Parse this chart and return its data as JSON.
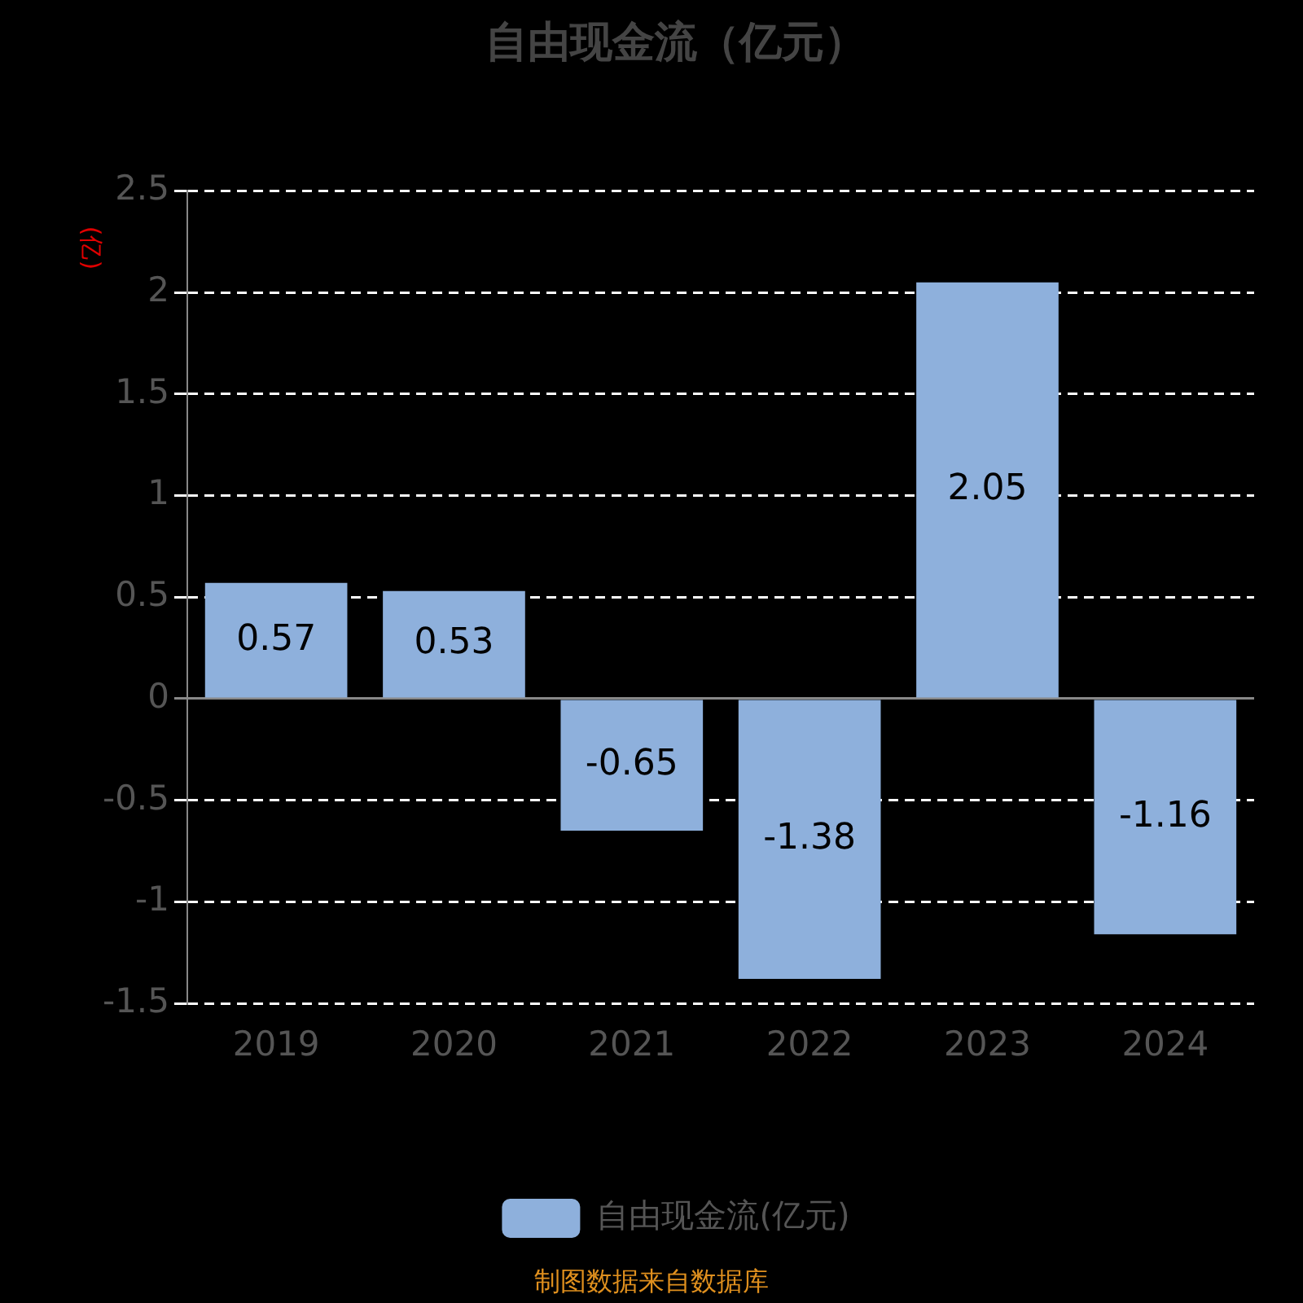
{
  "chart_data": {
    "type": "bar",
    "title": "自由现金流（亿元）",
    "ylabel": "(亿)",
    "categories": [
      "2019",
      "2020",
      "2021",
      "2022",
      "2023",
      "2024"
    ],
    "series": [
      {
        "name": "自由现金流(亿元)",
        "color": "#8eb0dc",
        "values": [
          0.57,
          0.53,
          -0.65,
          -1.38,
          2.05,
          -1.16
        ]
      }
    ],
    "ylim": [
      -1.5,
      2.5
    ],
    "yticks": [
      -1.5,
      -1,
      -0.5,
      0,
      0.5,
      1,
      1.5,
      2,
      2.5
    ],
    "grid": "y",
    "legend": "bottom",
    "data_labels": true,
    "annotations": [
      "制图数据来自数据库"
    ]
  }
}
